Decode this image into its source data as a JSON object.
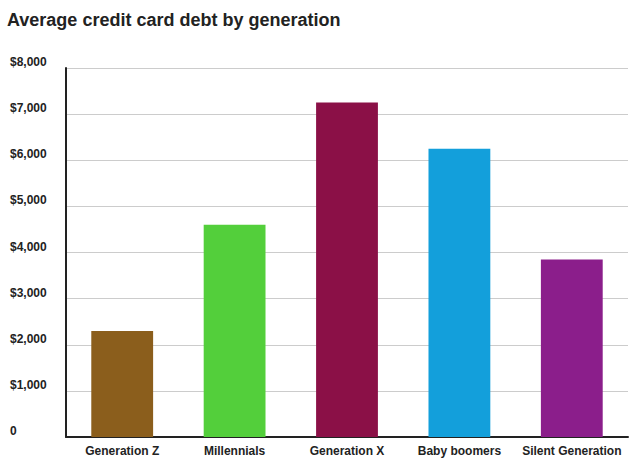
{
  "chart_data": {
    "type": "bar",
    "title": "Average credit card debt by generation",
    "categories": [
      "Generation Z",
      "Millennials",
      "Generation X",
      "Baby boomers",
      "Silent Generation"
    ],
    "values": [
      2300,
      4600,
      7250,
      6250,
      3850
    ],
    "colors": [
      "#8b5e1c",
      "#53cf3b",
      "#8b1047",
      "#139fdb",
      "#8b1e8b"
    ],
    "ylim": [
      0,
      8000
    ],
    "yticks": [
      0,
      {
        "value": 1000,
        "label": "$1,000"
      },
      {
        "value": 2000,
        "label": "$2,000"
      },
      {
        "value": 3000,
        "label": "$3,000"
      },
      {
        "value": 4000,
        "label": "$4,000"
      },
      {
        "value": 5000,
        "label": "$5,000"
      },
      {
        "value": 6000,
        "label": "$6,000"
      },
      {
        "value": 7000,
        "label": "$7,000"
      },
      {
        "value": 8000,
        "label": "$8,000"
      }
    ],
    "grid": true
  }
}
